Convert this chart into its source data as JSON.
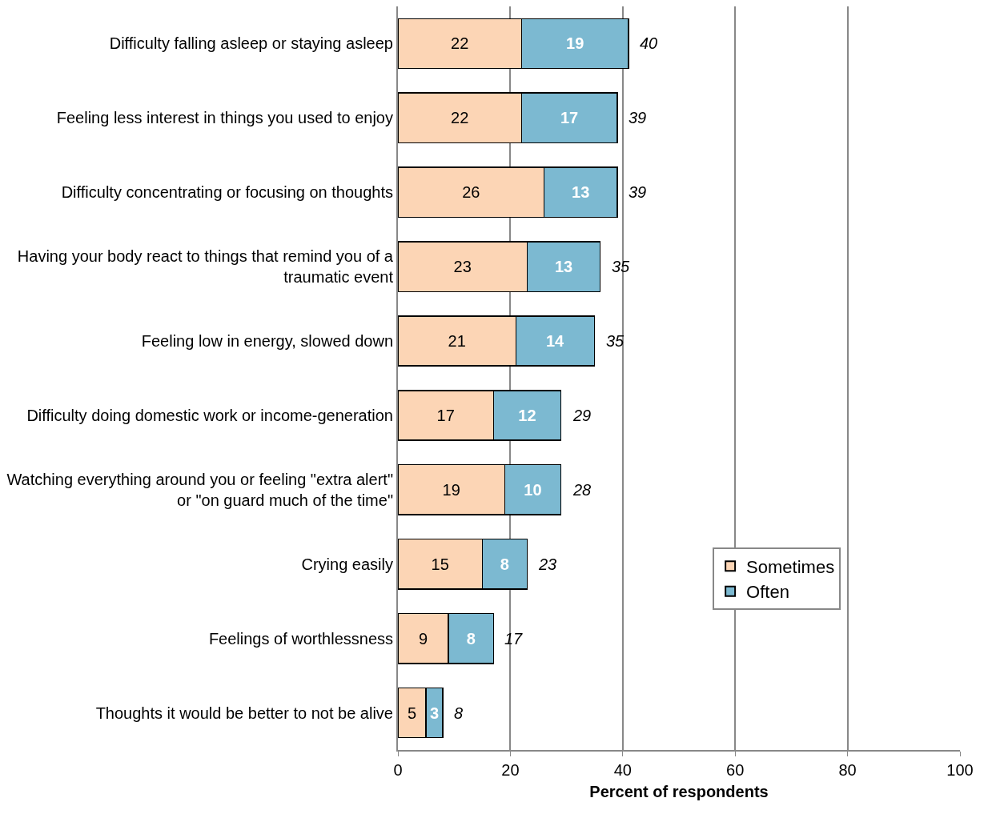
{
  "chart_data": {
    "type": "bar",
    "orientation": "horizontal",
    "stacked": true,
    "xlabel": "Percent of respondents",
    "categories": [
      "Difficulty falling asleep or staying asleep",
      "Feeling less interest in things you used to enjoy",
      "Difficulty concentrating or focusing on thoughts",
      "Having your body react to things that remind you of a traumatic event",
      "Feeling low in energy, slowed down",
      "Difficulty doing domestic work or income-generation",
      "Watching everything around you or feeling \"extra alert\" or \"on guard much of the time\"",
      "Crying easily",
      "Feelings of worthlessness",
      "Thoughts it would be better to not be alive"
    ],
    "series": [
      {
        "name": "Sometimes",
        "color": "#fcd5b5",
        "values": [
          22,
          22,
          26,
          23,
          21,
          17,
          19,
          15,
          9,
          5
        ]
      },
      {
        "name": "Often",
        "color": "#7cb9d1",
        "values": [
          19,
          17,
          13,
          13,
          14,
          12,
          10,
          8,
          8,
          3
        ]
      }
    ],
    "totals": [
      "40",
      "39",
      "39",
      "35",
      "35",
      "29",
      "28",
      "23",
      "17",
      "8"
    ],
    "data_labels": true,
    "xlim": [
      0,
      100
    ],
    "xticks": [
      0,
      20,
      40,
      60,
      80,
      100
    ],
    "grid": "x",
    "legend": "right"
  }
}
